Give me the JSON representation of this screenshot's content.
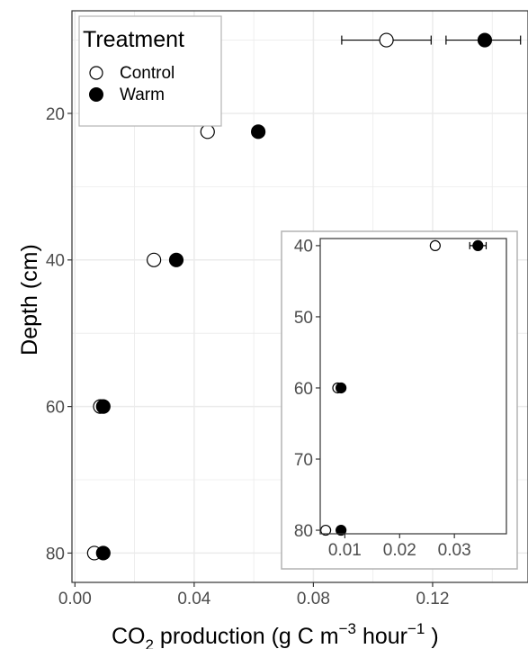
{
  "colors": {
    "panel_background": "#ffffff",
    "grid": "#ebebeb",
    "panel_border": "#333333",
    "tick_text": "#4d4d4d",
    "inset_border": "#b3b3b3",
    "point_stroke": "#000000",
    "control_fill": "#ffffff",
    "warm_fill": "#000000"
  },
  "legend": {
    "title": "Treatment",
    "entries": [
      {
        "label": "Control",
        "shape": "open-circle"
      },
      {
        "label": "Warm",
        "shape": "filled-circle"
      }
    ]
  },
  "chart_data": [
    {
      "type": "scatter",
      "role": "main",
      "xlabel": {
        "prefix": "CO",
        "sub": "2",
        "middle": " production (g C m",
        "sup1": "−3",
        "middle2": " hour",
        "sup2": "−1",
        "suffix": " )"
      },
      "ylabel": "Depth (cm)",
      "xlim": [
        -0.001,
        0.152
      ],
      "ylim": [
        6,
        84
      ],
      "y_reversed": true,
      "xticks": [
        0.0,
        0.04,
        0.08,
        0.12
      ],
      "xtick_labels": [
        "0.00",
        "0.04",
        "0.08",
        "0.12"
      ],
      "yticks": [
        20,
        40,
        60,
        80
      ],
      "ytick_labels": [
        "20",
        "40",
        "60",
        "80"
      ],
      "grid": true,
      "series": [
        {
          "name": "Control",
          "points": [
            {
              "x": 0.0445,
              "y": 22.5
            },
            {
              "x": 0.0265,
              "y": 40
            },
            {
              "x": 0.0085,
              "y": 60
            },
            {
              "x": 0.0065,
              "y": 80
            }
          ]
        },
        {
          "name": "Warm",
          "points": [
            {
              "x": 0.0615,
              "y": 22.5,
              "err": 0.0008
            },
            {
              "x": 0.034,
              "y": 40,
              "err": 0.0015
            },
            {
              "x": 0.0095,
              "y": 60,
              "err": 0.0005
            },
            {
              "x": 0.0095,
              "y": 80,
              "err": 0.0003
            }
          ]
        }
      ],
      "error_bar_key": [
        {
          "series": "Control",
          "x": 0.1045,
          "y": 10,
          "xmin": 0.0895,
          "xmax": 0.1195
        },
        {
          "series": "Warm",
          "x": 0.1375,
          "y": 10,
          "xmin": 0.1245,
          "xmax": 0.1495
        }
      ]
    },
    {
      "type": "scatter",
      "role": "inset",
      "xlim": [
        0.0055,
        0.0395
      ],
      "ylim": [
        39,
        80.5
      ],
      "y_reversed": true,
      "xticks": [
        0.01,
        0.02,
        0.03
      ],
      "xtick_labels": [
        "0.01",
        "0.02",
        "0.03"
      ],
      "yticks": [
        40,
        50,
        60,
        70,
        80
      ],
      "ytick_labels": [
        "40",
        "50",
        "60",
        "70",
        "80"
      ],
      "grid": false,
      "series": [
        {
          "name": "Control",
          "points": [
            {
              "x": 0.0265,
              "y": 40
            },
            {
              "x": 0.0087,
              "y": 60
            },
            {
              "x": 0.0065,
              "y": 80
            }
          ]
        },
        {
          "name": "Warm",
          "points": [
            {
              "x": 0.0343,
              "y": 40,
              "err": 0.0015
            },
            {
              "x": 0.0093,
              "y": 60,
              "err": 0.0003
            },
            {
              "x": 0.0093,
              "y": 80,
              "err": 0.0002
            }
          ]
        }
      ]
    }
  ]
}
